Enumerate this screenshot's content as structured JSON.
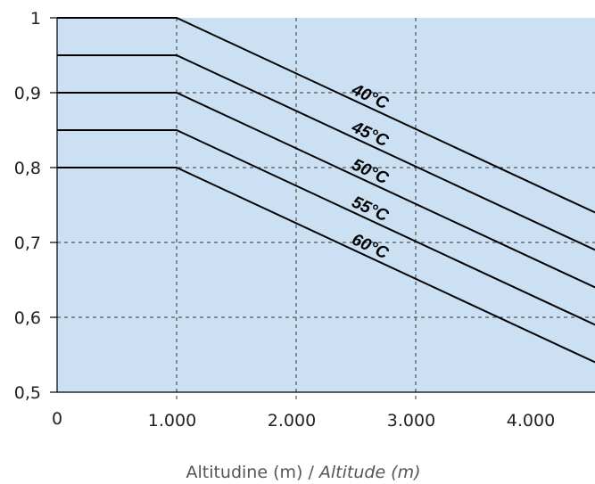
{
  "chart_data": {
    "type": "line",
    "title": "",
    "xlabel": "Altitudine (m) / ",
    "xlabel_italic": "Altitude (m)",
    "xlim": [
      0,
      4500
    ],
    "ylim": [
      0.5,
      1.0
    ],
    "x_ticks": [
      {
        "value": 0,
        "label": "0"
      },
      {
        "value": 1000,
        "label": "1.000"
      },
      {
        "value": 2000,
        "label": "2.000"
      },
      {
        "value": 3000,
        "label": "3.000"
      },
      {
        "value": 4000,
        "label": "4.000"
      }
    ],
    "y_ticks": [
      {
        "value": 0.5,
        "label": "0,5"
      },
      {
        "value": 0.6,
        "label": "0,6"
      },
      {
        "value": 0.7,
        "label": "0,7"
      },
      {
        "value": 0.8,
        "label": "0,8"
      },
      {
        "value": 0.9,
        "label": "0,9"
      },
      {
        "value": 1.0,
        "label": "1"
      }
    ],
    "vertical_gridlines_x": [
      1000,
      2000,
      3000
    ],
    "horizontal_gridlines_y": [
      0.6,
      0.7,
      0.8,
      0.9
    ],
    "grid": true,
    "background_color": "#cce0f3",
    "series": [
      {
        "name": "40°C",
        "label_x": 2600,
        "x": [
          0,
          1000,
          4500
        ],
        "y": [
          1.0,
          1.0,
          0.74
        ]
      },
      {
        "name": "45°C",
        "label_x": 2600,
        "x": [
          0,
          1000,
          4500
        ],
        "y": [
          0.95,
          0.95,
          0.69
        ]
      },
      {
        "name": "50°C",
        "label_x": 2600,
        "x": [
          0,
          1000,
          4500
        ],
        "y": [
          0.9,
          0.9,
          0.64
        ]
      },
      {
        "name": "55°C",
        "label_x": 2600,
        "x": [
          0,
          1000,
          4500
        ],
        "y": [
          0.85,
          0.85,
          0.59
        ]
      },
      {
        "name": "60°C",
        "label_x": 2600,
        "x": [
          0,
          1000,
          4500
        ],
        "y": [
          0.8,
          0.8,
          0.54
        ]
      }
    ]
  }
}
